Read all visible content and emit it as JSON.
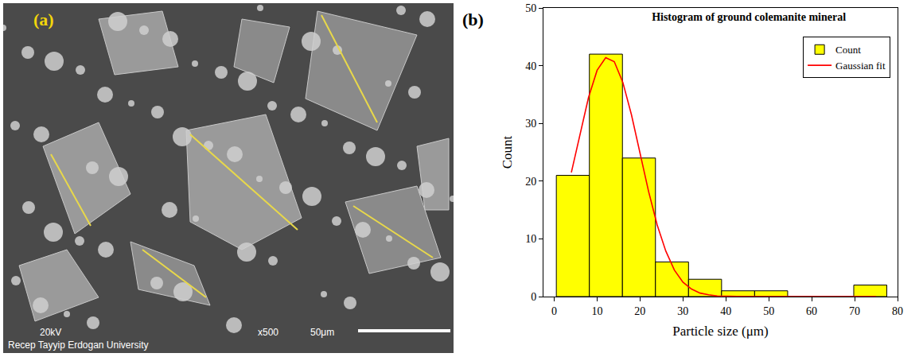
{
  "image_panel": {
    "label": "(a)",
    "voltage": "20kV",
    "magnification": "x500",
    "scale_bar": "50μm",
    "institution": "Recep Tayyip Erdogan University"
  },
  "chart_data": {
    "type": "histogram",
    "title": "Histogram of ground colemanite mineral",
    "annotations": [
      "(b)"
    ],
    "x_label": "Particle size (μm)",
    "y_label": "Count",
    "bins": [
      0.5,
      8.2,
      15.9,
      23.6,
      31.3,
      39.0,
      46.7,
      54.4,
      62.1,
      69.8,
      77.5
    ],
    "series": [
      {
        "name": "Count",
        "type": "bar",
        "color": "#ffff00",
        "values": [
          21,
          42,
          24,
          6,
          3,
          1,
          1,
          0,
          0,
          2
        ]
      },
      {
        "name": "Gaussian fit",
        "type": "line",
        "color": "#ff0000",
        "x": [
          4,
          6,
          8,
          10,
          12,
          14,
          16,
          18,
          20,
          22,
          24,
          26,
          28,
          30,
          32,
          34,
          36,
          38,
          45,
          55,
          65,
          75
        ],
        "values": [
          21.5,
          28.2,
          34.5,
          39.2,
          41.4,
          40.7,
          37.1,
          31.5,
          24.8,
          18.2,
          12.4,
          7.9,
          4.6,
          2.5,
          1.3,
          0.6,
          0.3,
          0.1,
          0,
          0,
          0,
          0
        ]
      }
    ],
    "xlim": [
      -2.5,
      80
    ],
    "xticks": [
      0,
      10,
      20,
      30,
      40,
      50,
      60,
      70,
      80
    ],
    "ylim": [
      0,
      50
    ],
    "yticks": [
      0,
      10,
      20,
      30,
      40,
      50
    ],
    "grid": false,
    "legend": "upper right"
  }
}
